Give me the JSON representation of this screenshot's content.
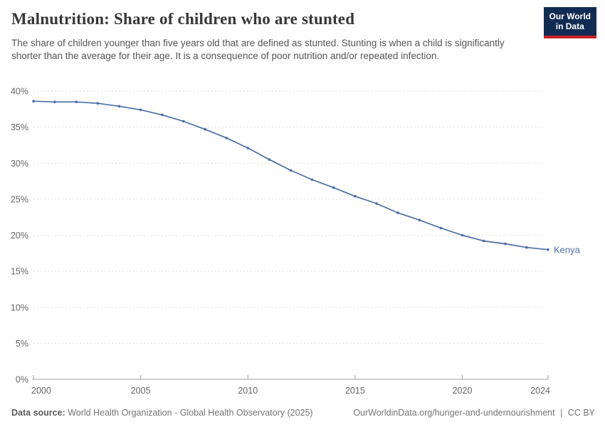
{
  "header": {
    "title": "Malnutrition: Share of children who are stunted",
    "subtitle": "The share of children younger than five years old that are defined as stunted. Stunting is when a child is significantly shorter than the average for their age. It is a consequence of poor nutrition and/or repeated infection.",
    "logo": {
      "line1": "Our World",
      "line2": "in Data"
    }
  },
  "chart_data": {
    "type": "line",
    "title": "Malnutrition: Share of children who are stunted",
    "xlabel": "",
    "ylabel": "",
    "xlim": [
      2000,
      2024
    ],
    "ylim": [
      0,
      40
    ],
    "x_ticks": [
      2000,
      2005,
      2010,
      2015,
      2020,
      2024
    ],
    "y_ticks": [
      0,
      5,
      10,
      15,
      20,
      25,
      30,
      35,
      40
    ],
    "y_tick_suffix": "%",
    "grid": "horizontal-dashed",
    "legend_position": "end-of-line-label",
    "series": [
      {
        "name": "Kenya",
        "color": "#4c6ea8",
        "x": [
          2000,
          2001,
          2002,
          2003,
          2004,
          2005,
          2006,
          2007,
          2008,
          2009,
          2010,
          2011,
          2012,
          2013,
          2014,
          2015,
          2016,
          2017,
          2018,
          2019,
          2020,
          2021,
          2022,
          2023,
          2024
        ],
        "values": [
          38.6,
          38.5,
          38.5,
          38.3,
          37.9,
          37.4,
          36.7,
          35.8,
          34.7,
          33.5,
          32.1,
          30.5,
          29.0,
          27.7,
          26.6,
          25.4,
          24.4,
          23.1,
          22.1,
          21.0,
          20.0,
          19.2,
          18.8,
          18.3,
          18.0
        ]
      }
    ]
  },
  "footer": {
    "datasource_label": "Data source:",
    "datasource_value": "World Health Organization - Global Health Observatory (2025)",
    "link": "OurWorldinData.org/hunger-and-undernourishment",
    "separator": "|",
    "license": "CC BY"
  },
  "colors": {
    "line": "#4c6ea8",
    "grid": "#dcdcdc",
    "axis": "#9e9e9e",
    "tick_label": "#666666",
    "title_text": "#373737",
    "subtitle_text": "#555555",
    "footer_text": "#757575",
    "logo_bg": "#122b52",
    "logo_bar": "#cc2127"
  }
}
